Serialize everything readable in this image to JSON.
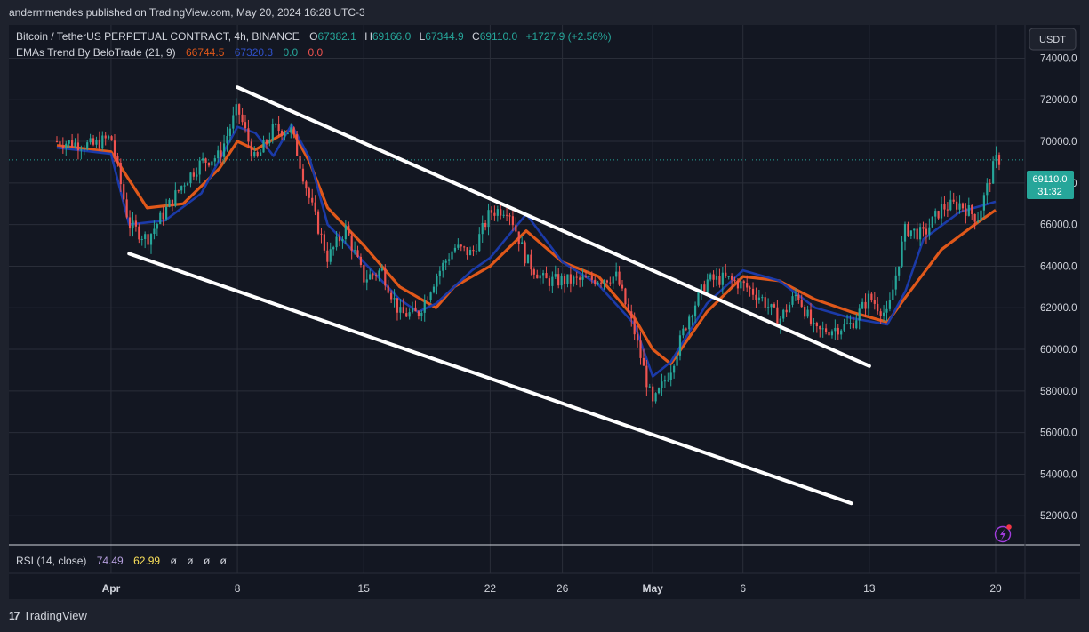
{
  "header": {
    "publisher": "andermmendes published on TradingView.com, May 20, 2024 16:28 UTC-3"
  },
  "legend": {
    "symbol": "Bitcoin / TetherUS PERPETUAL CONTRACT, 4h, BINANCE",
    "o_label": "O",
    "o": "67382.1",
    "h_label": "H",
    "h": "69166.0",
    "l_label": "L",
    "l": "67344.9",
    "c_label": "C",
    "c": "69110.0",
    "change": "+1727.9 (+2.56%)",
    "ema_name": "EMAs Trend By BeloTrade (21, 9)",
    "ema_slow": "66744.5",
    "ema_fast": "67320.3",
    "ema_v3": "0.0",
    "ema_v4": "0.0"
  },
  "price_axis": {
    "currency": "USDT",
    "ticks": [
      "74000.0",
      "72000.0",
      "70000.0",
      "68000.0",
      "66000.0",
      "64000.0",
      "62000.0",
      "60000.0",
      "58000.0",
      "56000.0",
      "54000.0",
      "52000.0"
    ],
    "last_price": "69110.0",
    "countdown": "31:32"
  },
  "time_axis": {
    "ticks": [
      "Apr",
      "8",
      "15",
      "22",
      "26",
      "May",
      "6",
      "13",
      "20"
    ]
  },
  "rsi": {
    "name": "RSI (14, close)",
    "value1": "74.49",
    "value2": "62.99",
    "extra": [
      "ø",
      "ø",
      "ø",
      "ø"
    ]
  },
  "footer": {
    "brand": "TradingView",
    "logo_mark": "17"
  },
  "colors": {
    "up": "#26a69a",
    "down": "#ef5350",
    "ema_slow": "#e0581a",
    "ema_fast": "#1b3aa8",
    "background": "#131722",
    "grid": "#2a2e39",
    "rsi_fast": "#b39ddb",
    "rsi_slow": "#fbe15a"
  },
  "chart_data": {
    "type": "candlestick",
    "symbol": "BTCUSDT.P",
    "interval": "4h",
    "x_range": [
      "2024-03-29",
      "2024-05-20"
    ],
    "ylim": [
      50600,
      75600
    ],
    "series": [
      {
        "name": "EMAs Trend By BeloTrade (21, 9)",
        "kind": "ema_slow",
        "x": [
          "2024-03-29",
          "2024-04-01",
          "2024-04-03",
          "2024-04-05",
          "2024-04-07",
          "2024-04-08",
          "2024-04-09",
          "2024-04-11",
          "2024-04-12",
          "2024-04-13",
          "2024-04-15",
          "2024-04-17",
          "2024-04-19",
          "2024-04-20",
          "2024-04-22",
          "2024-04-24",
          "2024-04-26",
          "2024-04-28",
          "2024-04-30",
          "2024-05-01",
          "2024-05-02",
          "2024-05-04",
          "2024-05-06",
          "2024-05-08",
          "2024-05-10",
          "2024-05-12",
          "2024-05-14",
          "2024-05-15",
          "2024-05-17",
          "2024-05-19",
          "2024-05-20"
        ],
        "values": [
          69800,
          69500,
          66800,
          67000,
          68700,
          70000,
          69600,
          70600,
          69000,
          66800,
          65000,
          63000,
          62000,
          63000,
          64000,
          65700,
          64200,
          63500,
          61500,
          60000,
          59300,
          61800,
          63500,
          63300,
          62400,
          61800,
          61300,
          62500,
          64800,
          66100,
          66700
        ]
      },
      {
        "name": "EMAs Trend By BeloTrade (21, 9)",
        "kind": "ema_fast",
        "x": [
          "2024-03-29",
          "2024-04-01",
          "2024-04-02",
          "2024-04-04",
          "2024-04-06",
          "2024-04-08",
          "2024-04-09",
          "2024-04-10",
          "2024-04-11",
          "2024-04-12",
          "2024-04-13",
          "2024-04-15",
          "2024-04-17",
          "2024-04-18",
          "2024-04-19",
          "2024-04-21",
          "2024-04-22",
          "2024-04-24",
          "2024-04-26",
          "2024-04-28",
          "2024-04-30",
          "2024-05-01",
          "2024-05-02",
          "2024-05-04",
          "2024-05-06",
          "2024-05-08",
          "2024-05-10",
          "2024-05-12",
          "2024-05-14",
          "2024-05-15",
          "2024-05-16",
          "2024-05-18",
          "2024-05-20"
        ],
        "values": [
          69700,
          69400,
          66000,
          66200,
          67500,
          70700,
          70400,
          69300,
          70800,
          69200,
          66000,
          64200,
          62400,
          61800,
          62200,
          63800,
          64400,
          66500,
          64200,
          63100,
          61200,
          58700,
          59400,
          62200,
          63800,
          63300,
          62000,
          61500,
          61200,
          62800,
          65300,
          66600,
          67100
        ]
      },
      {
        "name": "Price",
        "kind": "close",
        "x": [
          "2024-03-29",
          "2024-03-31",
          "2024-04-01",
          "2024-04-02",
          "2024-04-03",
          "2024-04-05",
          "2024-04-06",
          "2024-04-07",
          "2024-04-08",
          "2024-04-09",
          "2024-04-10",
          "2024-04-11",
          "2024-04-12",
          "2024-04-13",
          "2024-04-14",
          "2024-04-15",
          "2024-04-16",
          "2024-04-17",
          "2024-04-18",
          "2024-04-19",
          "2024-04-20",
          "2024-04-21",
          "2024-04-22",
          "2024-04-23",
          "2024-04-24",
          "2024-04-25",
          "2024-04-27",
          "2024-04-29",
          "2024-04-30",
          "2024-05-01",
          "2024-05-02",
          "2024-05-03",
          "2024-05-04",
          "2024-05-05",
          "2024-05-06",
          "2024-05-07",
          "2024-05-08",
          "2024-05-09",
          "2024-05-10",
          "2024-05-11",
          "2024-05-12",
          "2024-05-13",
          "2024-05-14",
          "2024-05-15",
          "2024-05-16",
          "2024-05-17",
          "2024-05-18",
          "2024-05-19",
          "2024-05-20"
        ],
        "values": [
          70000,
          69800,
          70200,
          66000,
          65300,
          68000,
          69000,
          69300,
          71600,
          69000,
          70600,
          70500,
          67200,
          64400,
          65800,
          63400,
          63800,
          61700,
          61700,
          63500,
          64900,
          64600,
          66600,
          66800,
          64300,
          63300,
          63300,
          63500,
          60800,
          57300,
          59100,
          61600,
          63300,
          63400,
          63100,
          62500,
          61400,
          62700,
          60800,
          61000,
          61200,
          62500,
          61600,
          65800,
          65500,
          66800,
          67000,
          66300,
          69110
        ]
      }
    ],
    "annotations": [
      {
        "kind": "trendline",
        "from": [
          "2024-04-08",
          72600
        ],
        "to": [
          "2024-05-13",
          59200
        ]
      },
      {
        "kind": "trendline",
        "from": [
          "2024-04-02",
          64600
        ],
        "to": [
          "2024-05-12",
          52600
        ]
      }
    ],
    "rsi": {
      "name": "RSI (14, close)",
      "value": 74.49,
      "signal": 62.99
    }
  }
}
